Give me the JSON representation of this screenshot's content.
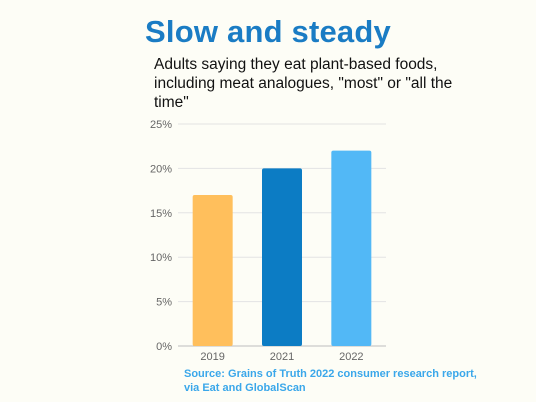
{
  "title": "Slow and steady",
  "subtitle": "Adults saying they eat plant-based foods, including meat analogues, \"most\" or \"all the time\"",
  "source": "Source: Grains of Truth 2022 consumer research report, via Eat and GlobalScan",
  "colors": {
    "title": "#1a7cc4",
    "source": "#3aa7ea",
    "gridline": "#e3e3e3",
    "axis": "#bdbdbd"
  },
  "chart_data": {
    "type": "bar",
    "categories": [
      "2019",
      "2021",
      "2022"
    ],
    "values": [
      17,
      20,
      22
    ],
    "bar_colors": [
      "#ffbf5c",
      "#0c7cc4",
      "#52b8f6"
    ],
    "y_ticks": [
      "0%",
      "5%",
      "10%",
      "15%",
      "20%",
      "25%"
    ],
    "ylim": [
      0,
      25
    ],
    "y_unit": "%",
    "grid": true,
    "legend": "none"
  }
}
